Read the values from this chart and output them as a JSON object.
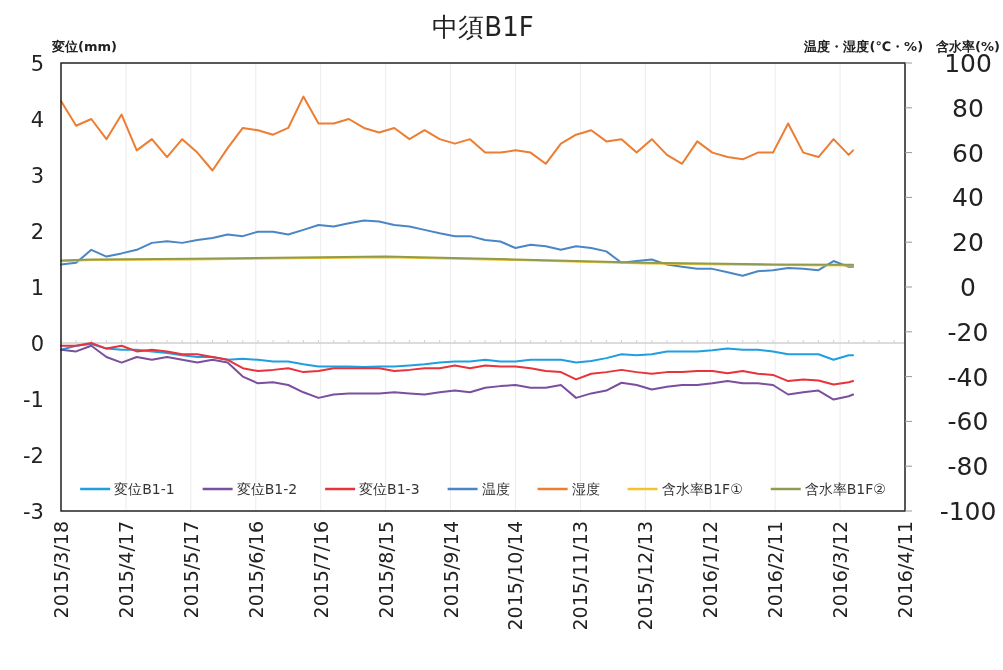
{
  "chart_data": {
    "type": "line",
    "title": "中須B1F",
    "ylabel": "変位(mm)",
    "y2label": "温度・湿度(℃・%)　含水率(%)",
    "xlim": [
      "2015-03-18",
      "2016-04-11"
    ],
    "xticks": [
      {
        "value": "2015-03-18",
        "label": "2015/3/18"
      },
      {
        "value": "2015-04-17",
        "label": "2015/4/17"
      },
      {
        "value": "2015-05-17",
        "label": "2015/5/17"
      },
      {
        "value": "2015-06-16",
        "label": "2015/6/16"
      },
      {
        "value": "2015-07-16",
        "label": "2015/7/16"
      },
      {
        "value": "2015-08-15",
        "label": "2015/8/15"
      },
      {
        "value": "2015-09-14",
        "label": "2015/9/14"
      },
      {
        "value": "2015-10-14",
        "label": "2015/10/14"
      },
      {
        "value": "2015-11-13",
        "label": "2015/11/13"
      },
      {
        "value": "2015-12-13",
        "label": "2015/12/13"
      },
      {
        "value": "2016-01-12",
        "label": "2016/1/12"
      },
      {
        "value": "2016-02-11",
        "label": "2016/2/11"
      },
      {
        "value": "2016-03-12",
        "label": "2016/3/12"
      },
      {
        "value": "2016-04-11",
        "label": "2016/4/11"
      }
    ],
    "ylim": [
      -3,
      5
    ],
    "yticks": [
      -3,
      -2,
      -1,
      0,
      1,
      2,
      3,
      4,
      5
    ],
    "y2lim": [
      -100,
      100
    ],
    "y2ticks": [
      -100,
      -80,
      -60,
      -40,
      -20,
      0,
      20,
      40,
      60,
      80,
      100
    ],
    "grid": "x",
    "legend": "bottom",
    "ref_lines": [
      {
        "axis": "y",
        "value": 0,
        "color": "#d0d0d0"
      }
    ],
    "x": [
      "2015-03-18",
      "2015-03-25",
      "2015-04-01",
      "2015-04-08",
      "2015-04-15",
      "2015-04-22",
      "2015-04-29",
      "2015-05-06",
      "2015-05-13",
      "2015-05-20",
      "2015-05-27",
      "2015-06-03",
      "2015-06-10",
      "2015-06-17",
      "2015-06-24",
      "2015-07-01",
      "2015-07-08",
      "2015-07-15",
      "2015-07-22",
      "2015-07-29",
      "2015-08-05",
      "2015-08-12",
      "2015-08-19",
      "2015-08-26",
      "2015-09-02",
      "2015-09-09",
      "2015-09-16",
      "2015-09-23",
      "2015-09-30",
      "2015-10-07",
      "2015-10-14",
      "2015-10-21",
      "2015-10-28",
      "2015-11-04",
      "2015-11-11",
      "2015-11-18",
      "2015-11-25",
      "2015-12-02",
      "2015-12-09",
      "2015-12-16",
      "2015-12-23",
      "2015-12-30",
      "2016-01-06",
      "2016-01-13",
      "2016-01-20",
      "2016-01-27",
      "2016-02-03",
      "2016-02-10",
      "2016-02-17",
      "2016-02-24",
      "2016-03-02",
      "2016-03-09",
      "2016-03-16",
      "2016-03-18"
    ],
    "series": [
      {
        "name": "変位B1-1",
        "color": "#1f9fe0",
        "values": [
          -0.12,
          -0.05,
          -0.02,
          -0.1,
          -0.12,
          -0.12,
          -0.15,
          -0.18,
          -0.22,
          -0.25,
          -0.25,
          -0.3,
          -0.28,
          -0.3,
          -0.33,
          -0.33,
          -0.38,
          -0.42,
          -0.42,
          -0.42,
          -0.43,
          -0.42,
          -0.42,
          -0.4,
          -0.38,
          -0.35,
          -0.33,
          -0.33,
          -0.3,
          -0.33,
          -0.33,
          -0.3,
          -0.3,
          -0.3,
          -0.35,
          -0.32,
          -0.27,
          -0.2,
          -0.22,
          -0.2,
          -0.15,
          -0.15,
          -0.15,
          -0.13,
          -0.1,
          -0.12,
          -0.12,
          -0.15,
          -0.2,
          -0.2,
          -0.2,
          -0.3,
          -0.22,
          -0.22
        ]
      },
      {
        "name": "変位B1-2",
        "color": "#7b4f9d",
        "values": [
          -0.12,
          -0.15,
          -0.05,
          -0.25,
          -0.35,
          -0.25,
          -0.3,
          -0.25,
          -0.3,
          -0.35,
          -0.3,
          -0.35,
          -0.6,
          -0.72,
          -0.7,
          -0.75,
          -0.88,
          -0.98,
          -0.92,
          -0.9,
          -0.9,
          -0.9,
          -0.88,
          -0.9,
          -0.92,
          -0.88,
          -0.85,
          -0.88,
          -0.8,
          -0.77,
          -0.75,
          -0.8,
          -0.8,
          -0.75,
          -0.98,
          -0.9,
          -0.85,
          -0.71,
          -0.75,
          -0.83,
          -0.78,
          -0.75,
          -0.75,
          -0.72,
          -0.68,
          -0.72,
          -0.72,
          -0.75,
          -0.92,
          -0.88,
          -0.85,
          -1.01,
          -0.95,
          -0.92
        ]
      },
      {
        "name": "変位B1-3",
        "color": "#e8323c",
        "values": [
          -0.05,
          -0.05,
          0,
          -0.1,
          -0.05,
          -0.15,
          -0.12,
          -0.15,
          -0.2,
          -0.2,
          -0.25,
          -0.3,
          -0.45,
          -0.5,
          -0.48,
          -0.45,
          -0.52,
          -0.5,
          -0.45,
          -0.45,
          -0.45,
          -0.45,
          -0.5,
          -0.48,
          -0.45,
          -0.45,
          -0.4,
          -0.45,
          -0.4,
          -0.42,
          -0.42,
          -0.45,
          -0.5,
          -0.52,
          -0.65,
          -0.55,
          -0.52,
          -0.48,
          -0.52,
          -0.55,
          -0.52,
          -0.52,
          -0.5,
          -0.5,
          -0.54,
          -0.5,
          -0.55,
          -0.57,
          -0.68,
          -0.65,
          -0.67,
          -0.74,
          -0.7,
          -0.68
        ]
      },
      {
        "name": "温度",
        "color": "#4a86c5",
        "axis": "y2",
        "values": [
          10,
          10.8,
          16.6,
          13.6,
          15,
          16.6,
          19.7,
          20.4,
          19.7,
          21,
          21.9,
          23.4,
          22.7,
          24.7,
          24.7,
          23.4,
          25.5,
          27.7,
          27,
          28.5,
          29.7,
          29.2,
          27.7,
          27,
          25.5,
          24,
          22.7,
          22.7,
          21,
          20.3,
          17.4,
          18.9,
          18.2,
          16.6,
          18.2,
          17.4,
          15.9,
          10.8,
          11.6,
          12.3,
          10,
          9,
          8.1,
          8.1,
          6.6,
          5,
          7,
          7.5,
          8.5,
          8.1,
          7.5,
          11.6,
          9,
          9
        ]
      },
      {
        "name": "湿度",
        "color": "#ed7d31",
        "axis": "y2",
        "values": [
          83,
          72,
          75,
          66,
          77,
          61,
          66,
          58,
          66,
          60,
          52,
          62,
          71,
          70,
          68,
          71,
          85,
          73,
          73,
          75,
          71,
          69,
          71,
          66,
          70,
          66,
          64,
          66,
          60,
          60,
          61,
          60,
          55,
          64,
          68,
          70,
          65,
          66,
          60,
          66,
          59,
          55,
          65,
          60,
          58,
          57,
          60,
          60,
          73,
          60,
          58,
          66,
          59,
          61
        ]
      },
      {
        "name": "含水率B1F①",
        "color": "#f2c230",
        "axis": "y2",
        "x": [
          "2015-03-18",
          "2015-04-01",
          "2015-05-17",
          "2015-07-16",
          "2015-08-15",
          "2015-10-14",
          "2015-12-13",
          "2016-02-11",
          "2016-03-18"
        ],
        "values": [
          11.5,
          12,
          12.3,
          13,
          13.3,
          12,
          10.5,
          9.8,
          9.6
        ]
      },
      {
        "name": "含水率B1F②",
        "color": "#8f9c50",
        "axis": "y2",
        "x": [
          "2015-03-18",
          "2015-04-01",
          "2015-05-17",
          "2015-07-16",
          "2015-08-15",
          "2015-10-14",
          "2015-12-13",
          "2016-02-11",
          "2016-03-18"
        ],
        "values": [
          11.8,
          12.3,
          12.6,
          13.3,
          13.6,
          12.3,
          10.8,
          10.1,
          9.9
        ]
      }
    ]
  }
}
